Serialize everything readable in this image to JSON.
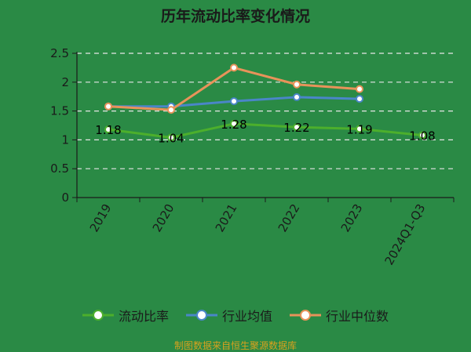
{
  "title": "历年流动比率变化情况",
  "footer": "制图数据来自恒生聚源数据库",
  "colors": {
    "background": "#2a8a45",
    "series": [
      "#4caf2c",
      "#4a86c8",
      "#e8935a"
    ],
    "grid": "#e6e6e6"
  },
  "legend": [
    {
      "name": "流动比率",
      "color": "#4caf2c"
    },
    {
      "name": "行业均值",
      "color": "#4a86c8"
    },
    {
      "name": "行业中位数",
      "color": "#e8935a"
    }
  ],
  "chart_data": {
    "type": "line",
    "title": "历年流动比率变化情况",
    "categories": [
      "2019",
      "2020",
      "2021",
      "2022",
      "2023",
      "2024Q1-Q3"
    ],
    "ylim": [
      0,
      2.5
    ],
    "yticks": [
      "0",
      "0.5",
      "1",
      "1.5",
      "2",
      "2.5"
    ],
    "grid": true,
    "legend_position": "bottom",
    "series": [
      {
        "name": "流动比率",
        "values": [
          1.18,
          1.04,
          1.28,
          1.22,
          1.19,
          1.08
        ],
        "labels": [
          "1.18",
          "1.04",
          "1.28",
          "1.22",
          "1.19",
          "1.08"
        ]
      },
      {
        "name": "行业均值",
        "values": [
          1.58,
          1.58,
          1.67,
          1.74,
          1.71,
          null
        ]
      },
      {
        "name": "行业中位数",
        "values": [
          1.58,
          1.52,
          2.25,
          1.96,
          1.88,
          null
        ]
      }
    ]
  }
}
